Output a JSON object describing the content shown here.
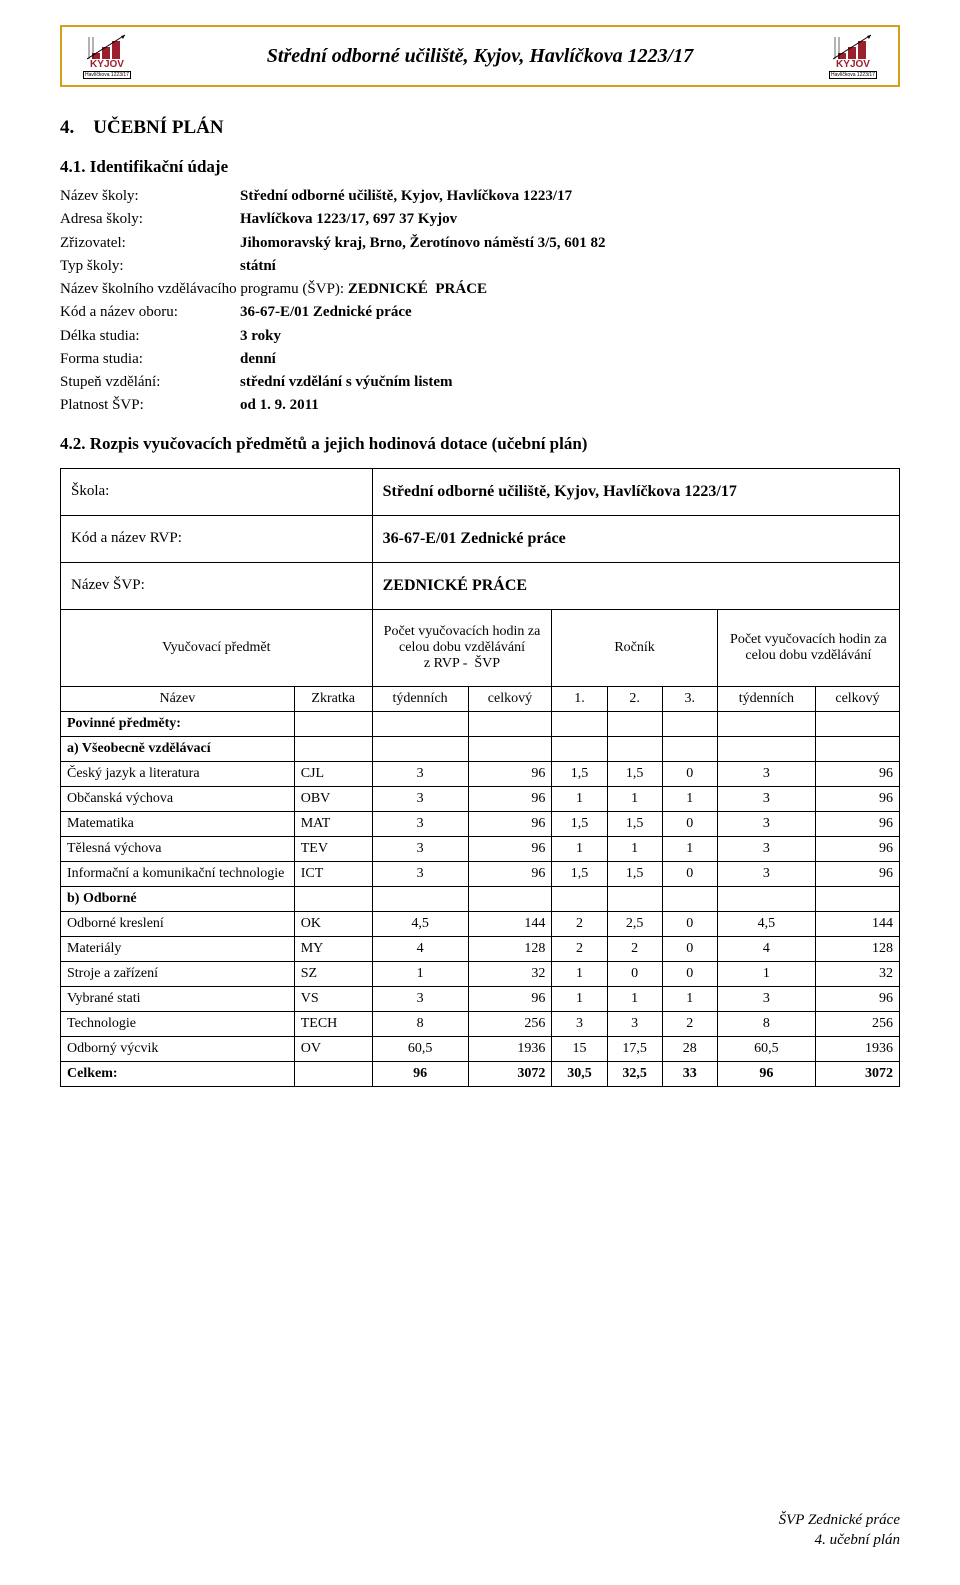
{
  "colors": {
    "border_gold": "#d4a017",
    "logo_red": "#9c1f2e",
    "text": "#000000",
    "background": "#ffffff"
  },
  "header": {
    "title": "Střední odborné učiliště, Kyjov, Havlíčkova 1223/17",
    "logo_main": "KYJOV",
    "logo_sub": "Havlíčkova 1223/17"
  },
  "section_number": "4.",
  "section_title": "UČEBNÍ  PLÁN",
  "s41_number": "4.1.",
  "s41_title": "Identifikační údaje",
  "info": [
    {
      "label": "Název školy:",
      "value": "Střední odborné učiliště, Kyjov, Havlíčkova 1223/17",
      "bold": true
    },
    {
      "label": "Adresa školy:",
      "value": "Havlíčkova 1223/17, 697 37 Kyjov",
      "bold": true
    },
    {
      "label": "Zřizovatel:",
      "value": "Jihomoravský kraj, Brno, Žerotínovo náměstí 3/5, 601 82",
      "bold": true
    },
    {
      "label": "Typ školy:",
      "value": "státní",
      "bold": true
    }
  ],
  "info_program_line": "Název školního vzdělávacího programu (ŠVP): ZEDNICKÉ  PRÁCE",
  "info2": [
    {
      "label": "Kód a název oboru:",
      "value": "36-67-E/01 Zednické práce",
      "bold": true
    },
    {
      "label": "Délka studia:",
      "value": "3 roky",
      "bold": true
    },
    {
      "label": "Forma studia:",
      "value": "denní",
      "bold": true
    },
    {
      "label": "Stupeň vzdělání:",
      "value": "střední vzdělání s výučním listem",
      "bold": true
    },
    {
      "label": "Platnost ŠVP:",
      "value": "od 1. 9. 2011",
      "bold": true
    }
  ],
  "s42_number": "4.2.",
  "s42_title": "Rozpis vyučovacích předmětů a jejich hodinová dotace (učební plán)",
  "table_head": {
    "skola_l": "Škola:",
    "skola_v": "Střední odborné učiliště, Kyjov, Havlíčkova 1223/17",
    "kod_l": "Kód a název RVP:",
    "kod_v": "36-67-E/01 Zednické práce",
    "nazev_l": "Název ŠVP:",
    "nazev_v": "ZEDNICKÉ PRÁCE",
    "predmet": "Vyučovací předmět",
    "pocet_rvp": "Počet vyučovacích hodin za celou dobu vzdělávání\nz RVP -  ŠVP",
    "rocnik": "Ročník",
    "pocet_celk": "Počet vyučovacích hodin za celou dobu vzdělávání"
  },
  "col_head": {
    "nazev": "Název",
    "zkratka": "Zkratka",
    "tyden": "týdenních",
    "celk": "celkový",
    "r1": "1.",
    "r2": "2.",
    "r3": "3.",
    "tyden2": "týdenních",
    "celk2": "celkový"
  },
  "sections": {
    "povinne": "Povinné předměty:",
    "vseob": "a) Všeobecně vzdělávací",
    "odbor": "b) Odborné"
  },
  "rows_a": [
    {
      "n": "Český jazyk a literatura",
      "z": "CJL",
      "t": "3",
      "c": "96",
      "r1": "1,5",
      "r2": "1,5",
      "r3": "0",
      "t2": "3",
      "c2": "96"
    },
    {
      "n": "Občanská výchova",
      "z": "OBV",
      "t": "3",
      "c": "96",
      "r1": "1",
      "r2": "1",
      "r3": "1",
      "t2": "3",
      "c2": "96"
    },
    {
      "n": "Matematika",
      "z": "MAT",
      "t": "3",
      "c": "96",
      "r1": "1,5",
      "r2": "1,5",
      "r3": "0",
      "t2": "3",
      "c2": "96"
    },
    {
      "n": "Tělesná výchova",
      "z": "TEV",
      "t": "3",
      "c": "96",
      "r1": "1",
      "r2": "1",
      "r3": "1",
      "t2": "3",
      "c2": "96"
    },
    {
      "n": "Informační a komunikační technologie",
      "z": "ICT",
      "t": "3",
      "c": "96",
      "r1": "1,5",
      "r2": "1,5",
      "r3": "0",
      "t2": "3",
      "c2": "96"
    }
  ],
  "rows_b": [
    {
      "n": "Odborné kreslení",
      "z": "OK",
      "t": "4,5",
      "c": "144",
      "r1": "2",
      "r2": "2,5",
      "r3": "0",
      "t2": "4,5",
      "c2": "144"
    },
    {
      "n": "Materiály",
      "z": "MY",
      "t": "4",
      "c": "128",
      "r1": "2",
      "r2": "2",
      "r3": "0",
      "t2": "4",
      "c2": "128"
    },
    {
      "n": "Stroje a zařízení",
      "z": "SZ",
      "t": "1",
      "c": "32",
      "r1": "1",
      "r2": "0",
      "r3": "0",
      "t2": "1",
      "c2": "32"
    },
    {
      "n": "Vybrané stati",
      "z": "VS",
      "t": "3",
      "c": "96",
      "r1": "1",
      "r2": "1",
      "r3": "1",
      "t2": "3",
      "c2": "96"
    },
    {
      "n": "Technologie",
      "z": "TECH",
      "t": "8",
      "c": "256",
      "r1": "3",
      "r2": "3",
      "r3": "2",
      "t2": "8",
      "c2": "256"
    },
    {
      "n": "Odborný výcvik",
      "z": "OV",
      "t": "60,5",
      "c": "1936",
      "r1": "15",
      "r2": "17,5",
      "r3": "28",
      "t2": "60,5",
      "c2": "1936"
    }
  ],
  "totals": {
    "n": "Celkem:",
    "z": "",
    "t": "96",
    "c": "3072",
    "r1": "30,5",
    "r2": "32,5",
    "r3": "33",
    "t2": "96",
    "c2": "3072"
  },
  "footer": {
    "l1": "ŠVP Zednické práce",
    "l2": "4. učební plán"
  }
}
